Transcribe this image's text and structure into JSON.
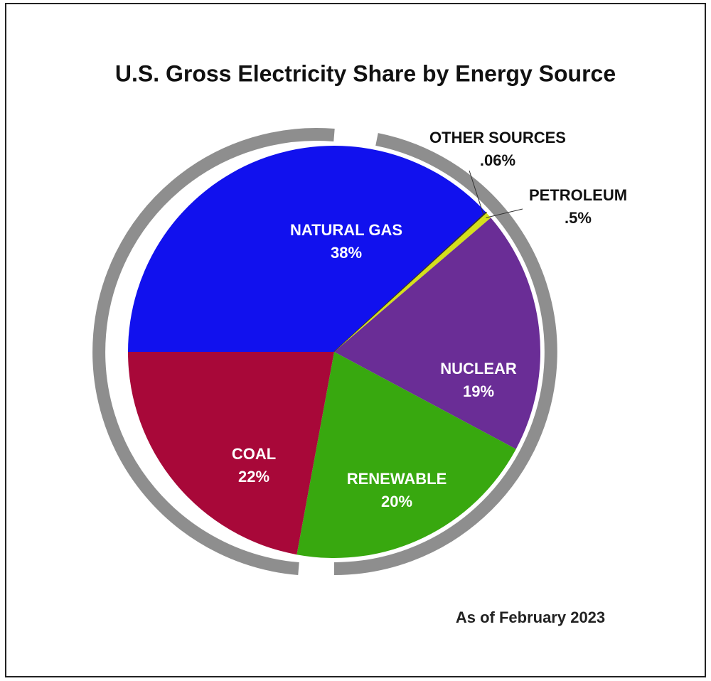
{
  "chart_data": {
    "type": "pie",
    "title": "U.S. Gross Electricity Share by Energy Source",
    "note": "As of February 2023",
    "categories": [
      "NATURAL GAS",
      "OTHER SOURCES",
      "PETROLEUM",
      "NUCLEAR",
      "RENEWABLE",
      "COAL"
    ],
    "values": [
      38,
      0.06,
      0.5,
      19,
      20,
      22
    ],
    "value_labels": [
      "38%",
      ".06%",
      ".5%",
      "19%",
      "20%",
      "22%"
    ],
    "colors": [
      "#1111ee",
      "#333333",
      "#d4e01c",
      "#6a2d96",
      "#38a80f",
      "#a80839"
    ]
  }
}
